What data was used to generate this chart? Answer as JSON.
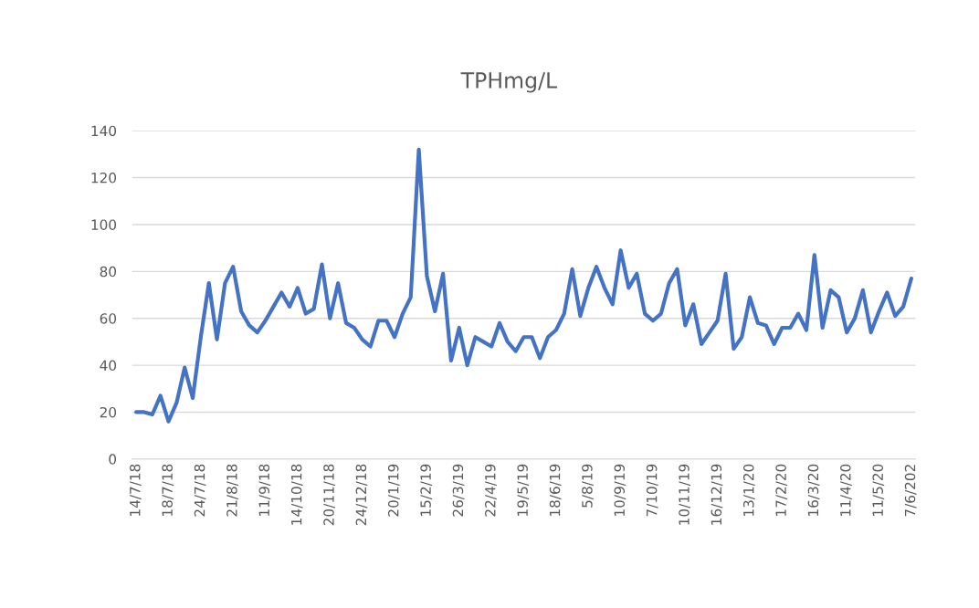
{
  "chart_data": {
    "type": "line",
    "title": "TPHmg/L",
    "categories": [
      "14/7/18",
      null,
      null,
      null,
      "18/7/18",
      null,
      null,
      null,
      "24/7/18",
      null,
      null,
      null,
      "21/8/18",
      null,
      null,
      null,
      "11/9/18",
      null,
      null,
      null,
      "14/10/18",
      null,
      null,
      null,
      "20/11/18",
      null,
      null,
      null,
      "24/12/18",
      null,
      null,
      null,
      "20/1/19",
      null,
      null,
      null,
      "15/2/19",
      null,
      null,
      null,
      "26/3/19",
      null,
      null,
      null,
      "22/4/19",
      null,
      null,
      null,
      "19/5/19",
      null,
      null,
      null,
      "18/6/19",
      null,
      null,
      null,
      "5/8/19",
      null,
      null,
      null,
      "10/9/19",
      null,
      null,
      null,
      "7/10/19",
      null,
      null,
      null,
      "10/11/19",
      null,
      null,
      null,
      "16/12/19",
      null,
      null,
      null,
      "13/1/20",
      null,
      null,
      null,
      "17/2/20",
      null,
      null,
      null,
      "16/3/20",
      null,
      null,
      null,
      "11/4/20",
      null,
      null,
      null,
      "11/5/20",
      null,
      null,
      null,
      "7/6/202"
    ],
    "series": [
      {
        "color": "#4472c4",
        "values": [
          20,
          20,
          19,
          27,
          16,
          24,
          39,
          26,
          52,
          75,
          51,
          75,
          82,
          63,
          57,
          54,
          59,
          65,
          71,
          65,
          73,
          62,
          64,
          83,
          60,
          75,
          58,
          56,
          51,
          48,
          59,
          59,
          52,
          62,
          69,
          132,
          78,
          63,
          79,
          42,
          56,
          40,
          52,
          50,
          48,
          58,
          50,
          46,
          52,
          52,
          43,
          52,
          55,
          62,
          81,
          61,
          73,
          82,
          73,
          66,
          89,
          73,
          79,
          62,
          59,
          62,
          75,
          81,
          57,
          66,
          49,
          54,
          59,
          79,
          47,
          52,
          69,
          58,
          57,
          49,
          56,
          56,
          62,
          55,
          87,
          56,
          72,
          69,
          54,
          60,
          72,
          54,
          63,
          71,
          61,
          65,
          77
        ]
      }
    ],
    "ylim": [
      0,
      140
    ],
    "yticks": [
      0,
      20,
      40,
      60,
      80,
      100,
      120,
      140
    ],
    "grid": "y"
  }
}
